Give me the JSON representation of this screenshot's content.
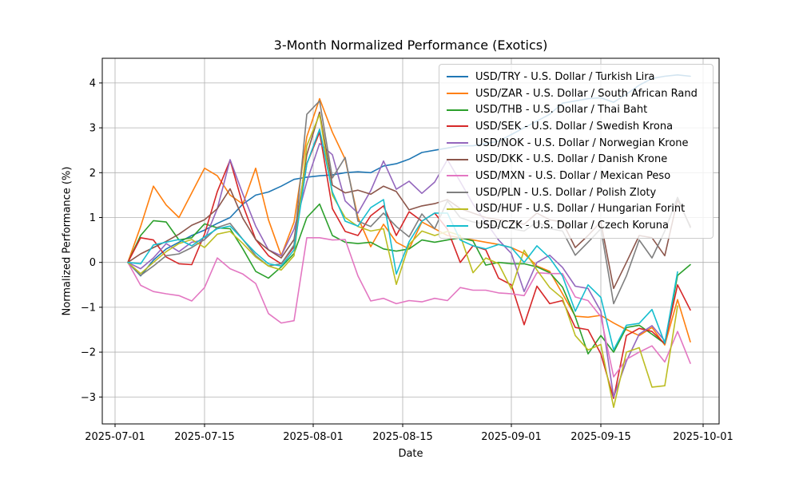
{
  "figure": {
    "title": "3-Month Normalized Performance (Exotics)",
    "xlabel": "Date",
    "ylabel": "Normalized Performance (%)"
  },
  "chart_data": {
    "type": "line",
    "title": "3-Month Normalized Performance (Exotics)",
    "xlabel": "Date",
    "ylabel": "Normalized Performance (%)",
    "grid": true,
    "grid_color": "#b0b0b0",
    "legend_position": "upper right",
    "x_base": "2025-07-01",
    "xlim_days": [
      -2,
      94.5
    ],
    "ylim": [
      -3.6,
      4.55
    ],
    "x_tick_days": [
      0,
      14,
      31,
      45,
      62,
      76,
      92
    ],
    "x_tick_labels": [
      "2025-07-01",
      "2025-07-15",
      "2025-08-01",
      "2025-08-15",
      "2025-09-01",
      "2025-09-15",
      "2025-10-01"
    ],
    "y_tick_values": [
      -3,
      -2,
      -1,
      0,
      1,
      2,
      3,
      4
    ],
    "y_tick_labels": [
      "−3",
      "−2",
      "−1",
      "0",
      "1",
      "2",
      "3",
      "4"
    ],
    "x": [
      "2025-07-03",
      "2025-07-05",
      "2025-07-07",
      "2025-07-09",
      "2025-07-11",
      "2025-07-13",
      "2025-07-15",
      "2025-07-17",
      "2025-07-19",
      "2025-07-21",
      "2025-07-23",
      "2025-07-25",
      "2025-07-27",
      "2025-07-29",
      "2025-07-31",
      "2025-08-02",
      "2025-08-04",
      "2025-08-06",
      "2025-08-08",
      "2025-08-10",
      "2025-08-12",
      "2025-08-14",
      "2025-08-16",
      "2025-08-18",
      "2025-08-20",
      "2025-08-22",
      "2025-08-24",
      "2025-08-26",
      "2025-08-28",
      "2025-08-30",
      "2025-09-01",
      "2025-09-03",
      "2025-09-05",
      "2025-09-07",
      "2025-09-09",
      "2025-09-11",
      "2025-09-13",
      "2025-09-15",
      "2025-09-17",
      "2025-09-19",
      "2025-09-21",
      "2025-09-23",
      "2025-09-25",
      "2025-09-27",
      "2025-09-29"
    ],
    "series": [
      {
        "label": "USD/TRY - U.S. Dollar / Turkish Lira",
        "color": "#1f77b4",
        "values": [
          0,
          -0.3,
          0.05,
          0.3,
          0.45,
          0.6,
          0.72,
          0.87,
          1.0,
          1.3,
          1.5,
          1.57,
          1.7,
          1.85,
          1.9,
          1.93,
          1.95,
          2.0,
          2.02,
          2.0,
          2.15,
          2.2,
          2.3,
          2.45,
          2.5,
          2.55,
          2.6,
          2.6,
          2.65,
          2.7,
          2.85,
          3.0,
          3.15,
          3.3,
          3.55,
          3.6,
          3.65,
          3.67,
          3.57,
          3.75,
          3.95,
          4.1,
          4.15,
          4.18,
          4.15
        ]
      },
      {
        "label": "USD/ZAR - U.S. Dollar / South African Rand",
        "color": "#ff7f0e",
        "values": [
          0,
          0.8,
          1.7,
          1.28,
          1.0,
          1.55,
          2.1,
          1.93,
          1.5,
          1.3,
          2.1,
          0.95,
          0.15,
          0.9,
          2.8,
          3.65,
          2.9,
          2.3,
          1.0,
          0.35,
          0.85,
          0.45,
          0.3,
          0.9,
          0.75,
          0.6,
          0.55,
          0.5,
          0.45,
          0.4,
          0.33,
          0.2,
          -0.08,
          -0.2,
          -0.7,
          -1.2,
          -1.22,
          -1.18,
          -1.35,
          -1.5,
          -1.63,
          -1.45,
          -1.84,
          -0.83,
          -1.77
        ]
      },
      {
        "label": "USD/THB - U.S. Dollar / Thai Baht",
        "color": "#2ca02c",
        "values": [
          0,
          0.6,
          0.93,
          0.9,
          0.5,
          0.55,
          0.86,
          0.77,
          0.75,
          0.3,
          -0.2,
          -0.35,
          -0.1,
          0.2,
          1.0,
          1.3,
          0.6,
          0.45,
          0.42,
          0.45,
          0.3,
          0.25,
          0.3,
          0.5,
          0.45,
          0.5,
          0.55,
          0.48,
          -0.06,
          0.0,
          -0.03,
          -0.03,
          -0.1,
          -0.23,
          -0.55,
          -1.21,
          -2.04,
          -1.63,
          -2.0,
          -1.45,
          -1.4,
          -1.6,
          -1.81,
          -0.29,
          -0.05
        ]
      },
      {
        "label": "USD/SEK - U.S. Dollar / Swedish Krona",
        "color": "#d62728",
        "values": [
          0,
          0.55,
          0.5,
          0.12,
          -0.03,
          -0.05,
          0.63,
          1.58,
          2.28,
          1.28,
          0.51,
          0.15,
          -0.03,
          0.35,
          2.2,
          2.9,
          1.2,
          0.69,
          0.6,
          1.04,
          1.26,
          0.6,
          1.13,
          0.92,
          1.1,
          0.74,
          0.0,
          0.37,
          0.28,
          -0.35,
          -0.5,
          -1.39,
          -0.53,
          -0.92,
          -0.85,
          -1.45,
          -1.5,
          -2.04,
          -3.03,
          -1.63,
          -1.47,
          -1.54,
          -1.81,
          -0.5,
          -1.06
        ]
      },
      {
        "label": "USD/NOK - U.S. Dollar / Norwegian Krone",
        "color": "#9467bd",
        "values": [
          0,
          -0.14,
          0.1,
          0.42,
          0.24,
          0.45,
          0.5,
          1.2,
          2.29,
          1.52,
          0.81,
          0.28,
          0.15,
          0.74,
          1.8,
          2.65,
          2.4,
          1.37,
          1.1,
          1.6,
          2.26,
          1.63,
          1.81,
          1.54,
          1.79,
          2.29,
          1.8,
          1.3,
          0.9,
          0.5,
          0.2,
          -0.65,
          0.0,
          0.16,
          -0.11,
          -0.53,
          -0.58,
          -1.09,
          -3.0,
          -2.2,
          -1.6,
          -1.41,
          -1.75,
          null,
          null
        ]
      },
      {
        "label": "USD/DKK - U.S. Dollar / Danish Krone",
        "color": "#8c564b",
        "values": [
          0,
          0.19,
          0.33,
          0.47,
          0.63,
          0.83,
          0.95,
          1.2,
          1.64,
          0.98,
          0.51,
          0.28,
          0.1,
          0.51,
          2.4,
          3.35,
          1.72,
          1.55,
          1.61,
          1.52,
          1.7,
          1.58,
          1.17,
          1.26,
          1.31,
          1.4,
          1.2,
          1.1,
          1.0,
          0.95,
          0.9,
          0.85,
          1.1,
          0.95,
          0.9,
          0.33,
          0.6,
          0.9,
          -0.58,
          0.0,
          0.6,
          0.55,
          0.15,
          1.4,
          0.8
        ]
      },
      {
        "label": "USD/MXN - U.S. Dollar / Mexican Peso",
        "color": "#e377c2",
        "values": [
          0,
          -0.51,
          -0.65,
          -0.7,
          -0.74,
          -0.86,
          -0.56,
          0.1,
          -0.14,
          -0.26,
          -0.47,
          -1.14,
          -1.35,
          -1.3,
          0.55,
          0.55,
          0.5,
          0.51,
          -0.3,
          -0.86,
          -0.8,
          -0.92,
          -0.85,
          -0.88,
          -0.8,
          -0.85,
          -0.56,
          -0.62,
          -0.62,
          -0.68,
          -0.7,
          -0.74,
          -0.23,
          -0.25,
          -0.25,
          -0.77,
          -0.85,
          -1.21,
          -2.55,
          -2.16,
          -2.0,
          -1.86,
          -2.22,
          -1.54,
          -2.25
        ]
      },
      {
        "label": "USD/PLN - U.S. Dollar / Polish Zloty",
        "color": "#7f7f7f",
        "values": [
          0,
          -0.29,
          -0.08,
          0.15,
          0.19,
          0.33,
          0.51,
          0.78,
          0.87,
          0.51,
          0.15,
          -0.08,
          -0.03,
          0.39,
          3.3,
          3.6,
          1.88,
          2.34,
          0.92,
          0.8,
          1.1,
          0.8,
          0.57,
          1.08,
          0.75,
          1.37,
          1.0,
          0.9,
          0.85,
          0.8,
          0.75,
          0.7,
          0.9,
          0.75,
          0.7,
          0.16,
          0.45,
          0.75,
          -0.92,
          -0.3,
          0.5,
          0.1,
          0.7,
          1.45,
          0.78
        ]
      },
      {
        "label": "USD/HUF - U.S. Dollar / Hungarian Forint",
        "color": "#bcbd22",
        "values": [
          0,
          -0.25,
          0.0,
          0.24,
          0.42,
          0.51,
          0.33,
          0.63,
          0.69,
          0.42,
          0.12,
          -0.08,
          -0.17,
          0.15,
          2.6,
          3.3,
          1.5,
          1.0,
          0.8,
          0.7,
          0.75,
          -0.49,
          0.4,
          0.7,
          0.6,
          0.69,
          0.6,
          -0.23,
          0.1,
          -0.03,
          -0.59,
          0.27,
          -0.17,
          -0.56,
          -0.8,
          -1.63,
          -1.95,
          -1.83,
          -3.23,
          -2.0,
          -1.9,
          -2.78,
          -2.75,
          -0.97,
          null
        ]
      },
      {
        "label": "USD/CZK - U.S. Dollar / Czech Koruna",
        "color": "#17becf",
        "values": [
          0,
          -0.03,
          0.39,
          0.45,
          0.51,
          0.37,
          0.57,
          0.75,
          0.81,
          0.51,
          0.21,
          -0.03,
          -0.08,
          0.28,
          2.2,
          2.97,
          1.57,
          0.92,
          0.81,
          1.22,
          1.4,
          -0.26,
          0.46,
          0.92,
          1.1,
          1.1,
          0.5,
          0.37,
          0.3,
          0.4,
          0.33,
          0.0,
          0.37,
          0.1,
          -0.3,
          -1.09,
          -0.5,
          -0.78,
          -1.95,
          -1.4,
          -1.36,
          -1.05,
          -1.8,
          -0.21,
          null
        ]
      }
    ]
  }
}
